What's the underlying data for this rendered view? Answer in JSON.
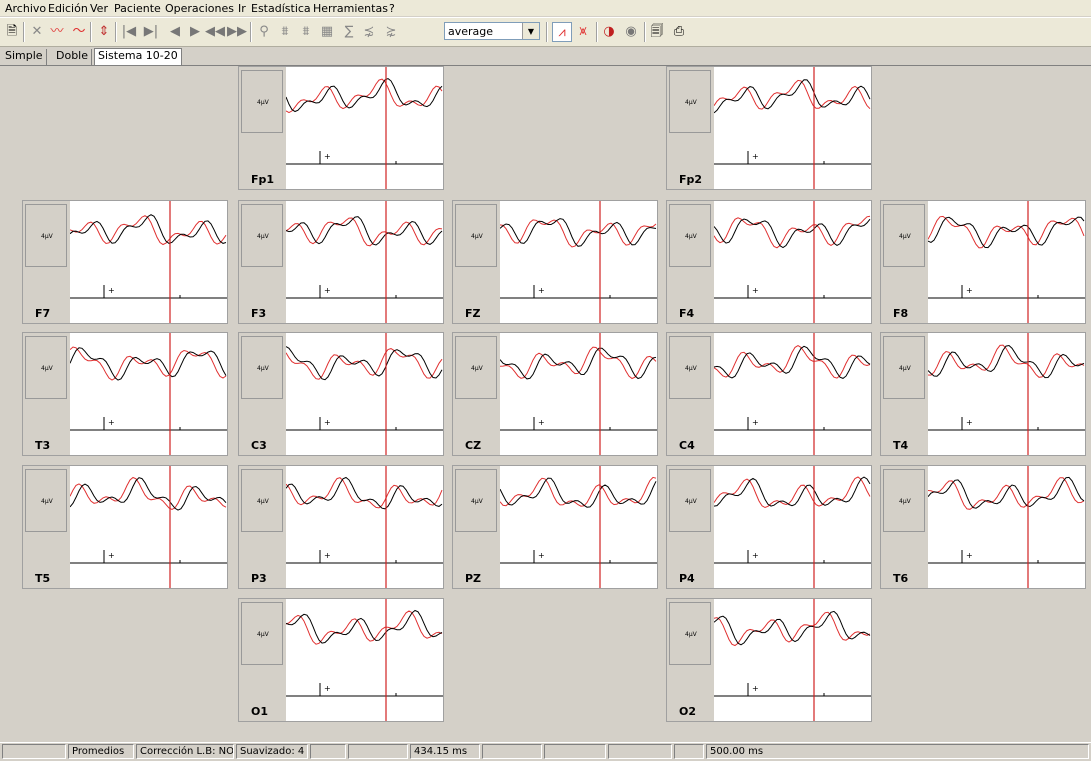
{
  "menu": [
    "Archivo",
    "Edición",
    "Ver",
    "Paciente",
    "Operaciones",
    "Ir",
    "Estadística",
    "Herramientas",
    "?"
  ],
  "toolbar": {
    "reference_select": "average",
    "icons": [
      "new-doc-icon",
      "filter-icon",
      "wave-up-icon",
      "wave-peak-icon",
      "marker-icon",
      "first-icon",
      "last-icon",
      "prev-icon",
      "next-icon",
      "rewind-icon",
      "forward-icon",
      "channels-icon",
      "channels2-icon",
      "channels3-icon",
      "grid-icon",
      "sum-icon",
      "average-icon",
      "average2-icon",
      "overlay-icon",
      "compare-icon",
      "map-icon",
      "circle-icon",
      "print-preview-icon",
      "print-icon"
    ]
  },
  "tabs": [
    "Simple",
    "Doble",
    "Sistema 10-20"
  ],
  "active_tab": "Sistema 10-20",
  "scale_label": "4µV",
  "cursor_marker": "+",
  "channels": [
    "Fp1",
    "Fp2",
    "F7",
    "F3",
    "FZ",
    "F4",
    "F8",
    "T3",
    "C3",
    "CZ",
    "C4",
    "T4",
    "T5",
    "P3",
    "PZ",
    "P4",
    "T6",
    "O1",
    "O2"
  ],
  "status": {
    "blank": "",
    "mode": "Promedios",
    "baseline": "Corrección L.B: NO",
    "smoothing": "Suavizado: 4",
    "cursor_time": "434.15 ms",
    "window": "500.00 ms"
  },
  "colors": {
    "trace_a": "#000000",
    "trace_b": "#e03030",
    "cursor": "#d02020"
  }
}
